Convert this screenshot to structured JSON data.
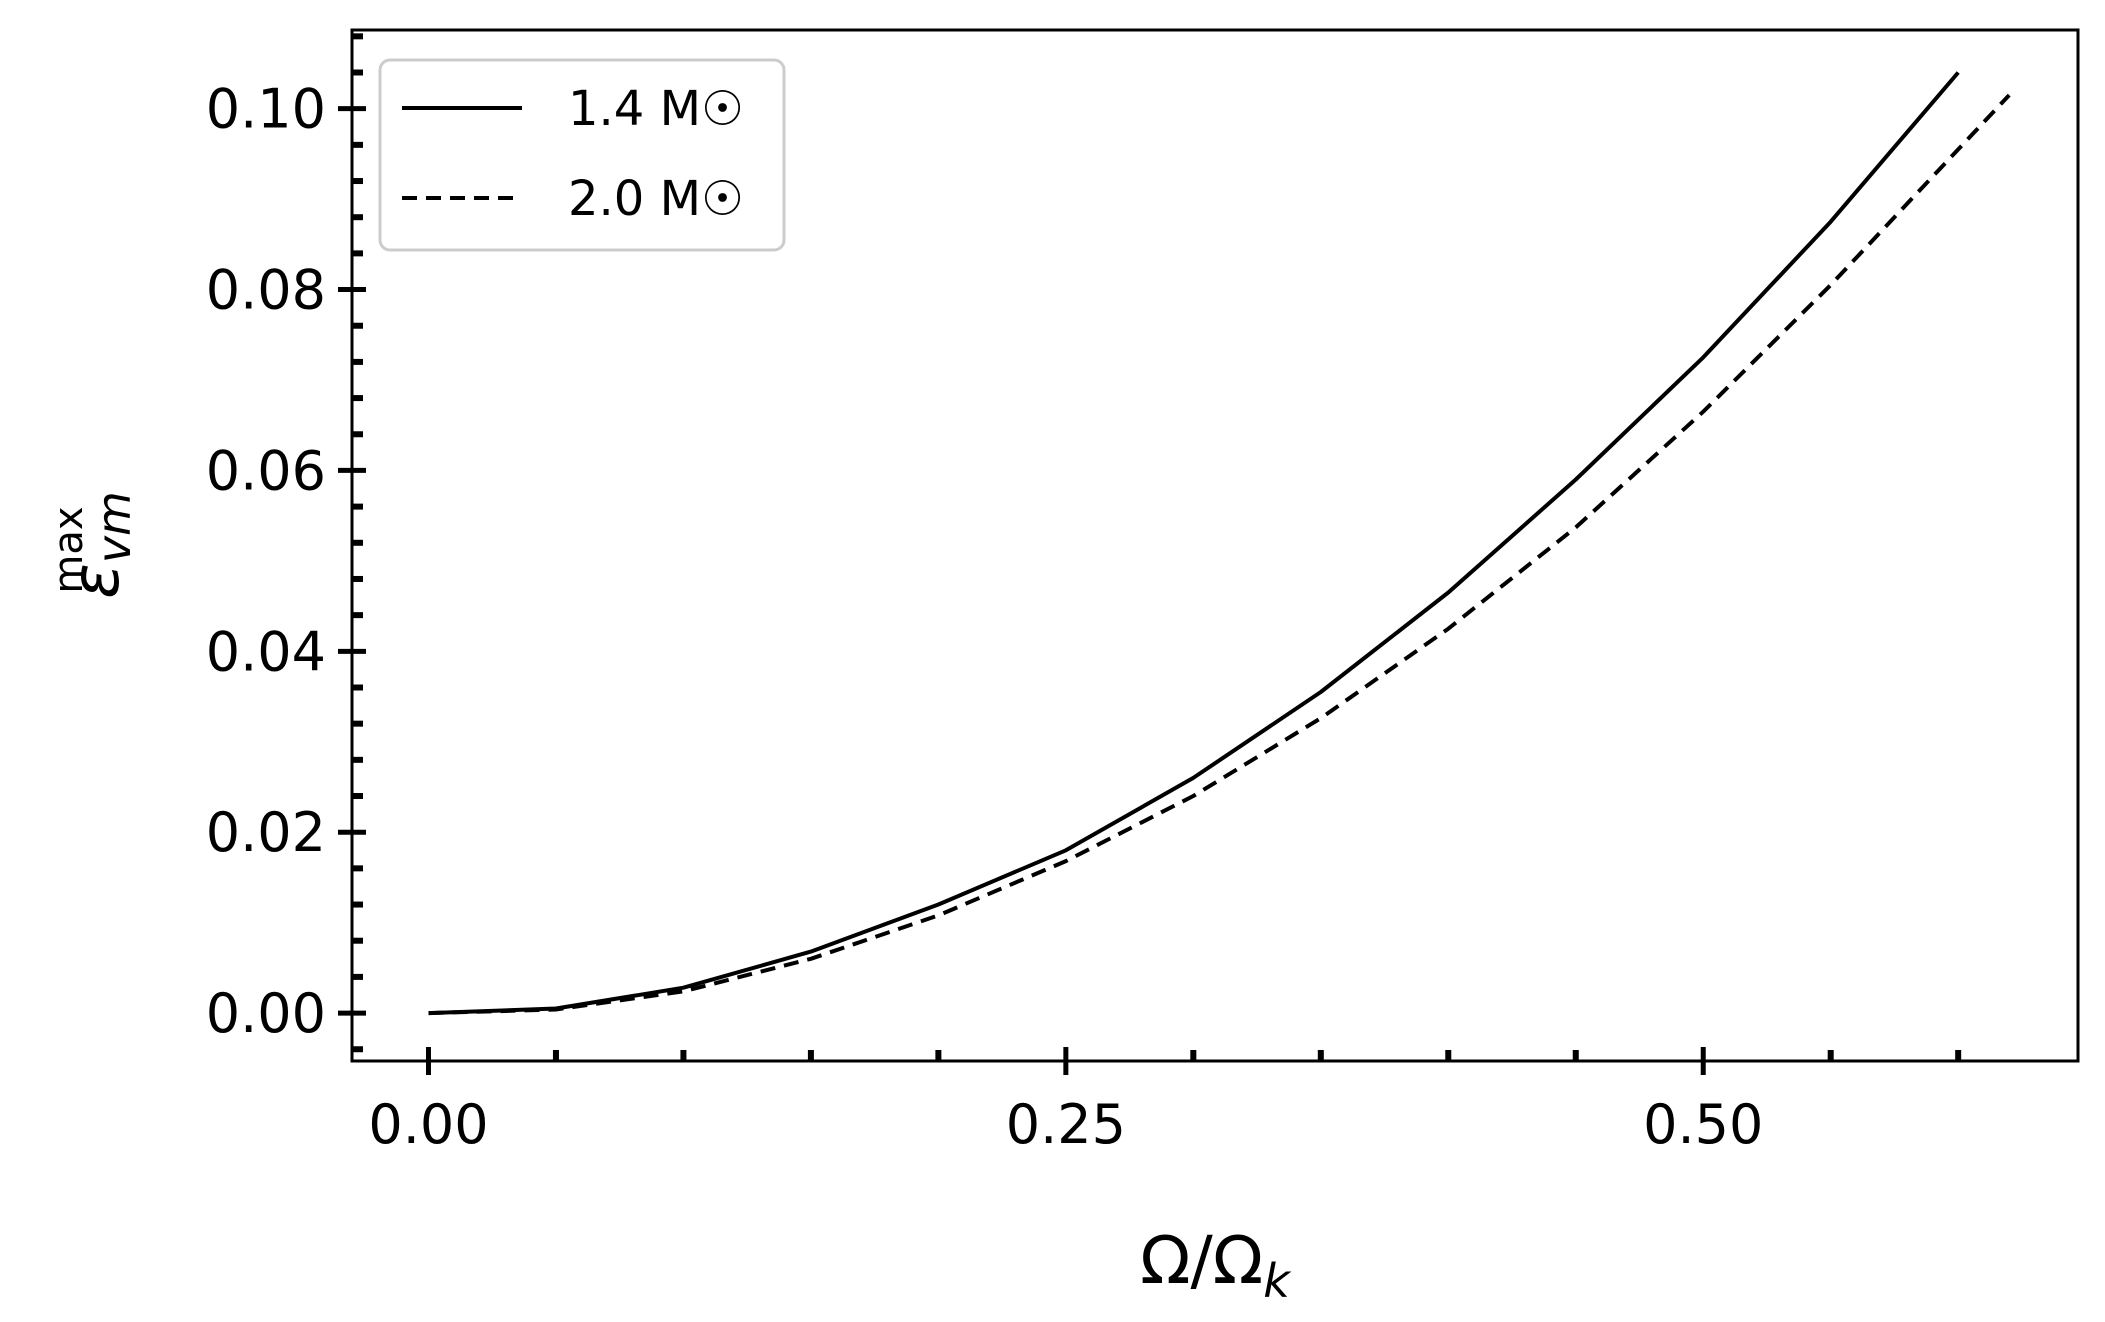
{
  "chart_data": {
    "type": "line",
    "title": "",
    "xlabel": {
      "base": "Ω/Ω",
      "sub": "k"
    },
    "ylabel": {
      "base": "ε",
      "sub": "vm",
      "sup": "max"
    },
    "xlim": [
      -0.03,
      0.647
    ],
    "ylim": [
      -0.0053,
      0.1087
    ],
    "xticks": [
      0.0,
      0.25,
      0.5
    ],
    "xtick_labels": [
      "0.00",
      "0.25",
      "0.50"
    ],
    "xminor_step": 0.05,
    "yticks": [
      0.0,
      0.02,
      0.04,
      0.06,
      0.08,
      0.1
    ],
    "ytick_labels": [
      "0.00",
      "0.02",
      "0.04",
      "0.06",
      "0.08",
      "0.10"
    ],
    "yminor_step": 0.004,
    "grid": false,
    "legend_position": "upper-left",
    "series": [
      {
        "name": "1.4 M☉",
        "style": "solid",
        "color": "#000000",
        "x": [
          0.0,
          0.05,
          0.1,
          0.15,
          0.2,
          0.25,
          0.3,
          0.35,
          0.4,
          0.45,
          0.5,
          0.55,
          0.6
        ],
        "y": [
          0.0,
          0.0005,
          0.0028,
          0.0068,
          0.012,
          0.018,
          0.026,
          0.0355,
          0.0465,
          0.059,
          0.0725,
          0.0875,
          0.104
        ]
      },
      {
        "name": "2.0 M☉",
        "style": "dashed",
        "color": "#000000",
        "x": [
          0.0,
          0.05,
          0.1,
          0.15,
          0.2,
          0.25,
          0.3,
          0.35,
          0.4,
          0.45,
          0.5,
          0.55,
          0.6,
          0.62
        ],
        "y": [
          0.0,
          0.0004,
          0.0024,
          0.006,
          0.0108,
          0.0168,
          0.024,
          0.0326,
          0.0425,
          0.0537,
          0.0665,
          0.0805,
          0.0955,
          0.1015
        ]
      }
    ]
  }
}
